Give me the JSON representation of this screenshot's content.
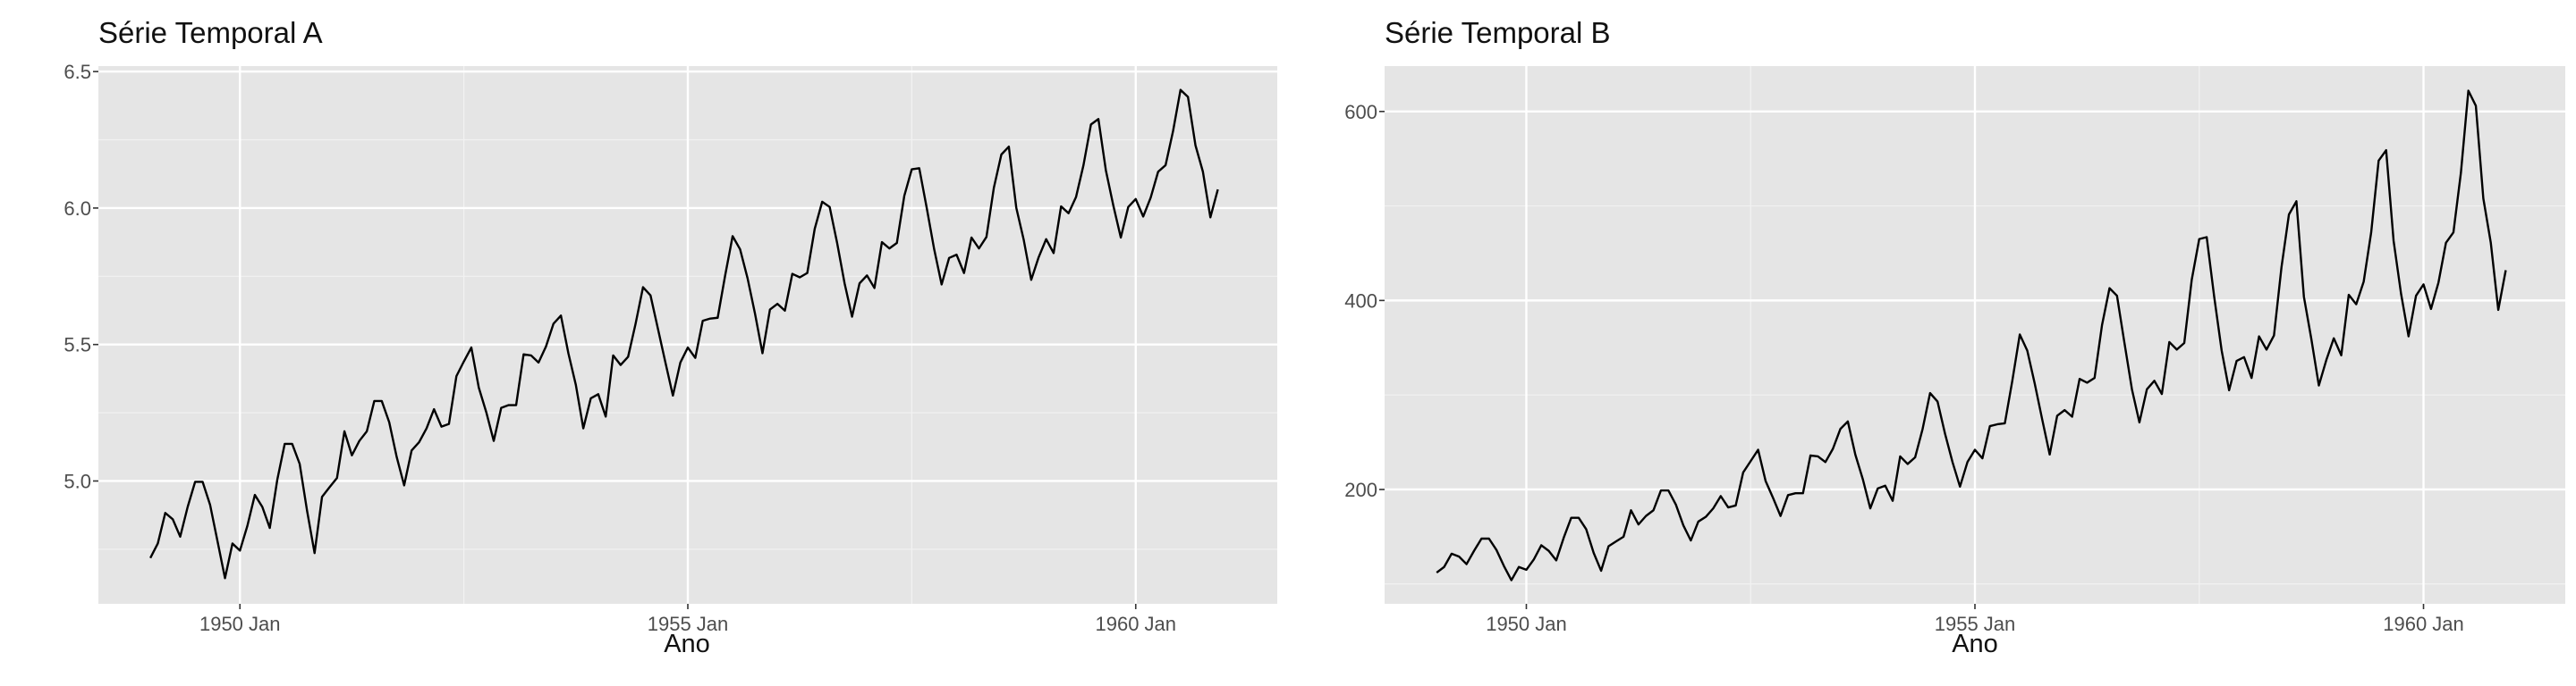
{
  "chart_data": [
    {
      "type": "line",
      "title": "Série Temporal A",
      "xlabel": "Ano",
      "ylabel": "",
      "x_tick_labels": [
        "1950 Jan",
        "1955 Jan",
        "1960 Jan"
      ],
      "y_tick_labels": [
        "5.0",
        "5.5",
        "6.0",
        "6.5"
      ],
      "y_ticks": [
        5.0,
        5.5,
        6.0,
        6.5
      ],
      "x_ticks": [
        1950,
        1955,
        1960
      ],
      "xlim": [
        1948.42,
        1961.58
      ],
      "ylim": [
        4.55,
        6.52
      ],
      "grid": true,
      "x_start": 1949,
      "x_step_months": 1,
      "series": [
        {
          "values": [
            4.718,
            4.771,
            4.883,
            4.86,
            4.796,
            4.905,
            4.997,
            4.997,
            4.913,
            4.779,
            4.644,
            4.771,
            4.745,
            4.836,
            4.949,
            4.905,
            4.828,
            5.004,
            5.136,
            5.136,
            5.063,
            4.89,
            4.736,
            4.942,
            4.977,
            5.011,
            5.182,
            5.094,
            5.147,
            5.182,
            5.293,
            5.293,
            5.215,
            5.088,
            4.984,
            5.112,
            5.142,
            5.193,
            5.263,
            5.199,
            5.209,
            5.384,
            5.438,
            5.489,
            5.342,
            5.252,
            5.147,
            5.268,
            5.278,
            5.278,
            5.464,
            5.46,
            5.434,
            5.493,
            5.576,
            5.606,
            5.468,
            5.352,
            5.193,
            5.303,
            5.318,
            5.236,
            5.46,
            5.425,
            5.455,
            5.576,
            5.71,
            5.68,
            5.557,
            5.434,
            5.313,
            5.434,
            5.489,
            5.451,
            5.587,
            5.595,
            5.598,
            5.753,
            5.897,
            5.849,
            5.743,
            5.613,
            5.468,
            5.628,
            5.649,
            5.624,
            5.759,
            5.746,
            5.762,
            5.924,
            6.023,
            6.004,
            5.872,
            5.724,
            5.602,
            5.724,
            5.753,
            5.707,
            5.875,
            5.852,
            5.872,
            6.045,
            6.142,
            6.146,
            6.001,
            5.849,
            5.72,
            5.817,
            5.829,
            5.762,
            5.892,
            5.852,
            5.894,
            6.075,
            6.196,
            6.225,
            6.001,
            5.883,
            5.737,
            5.82,
            5.886,
            5.835,
            6.006,
            5.981,
            6.04,
            6.157,
            6.306,
            6.326,
            6.138,
            6.009,
            5.892,
            6.004,
            6.033,
            5.969,
            6.038,
            6.133,
            6.157,
            6.282,
            6.433,
            6.407,
            6.23,
            6.133,
            5.966,
            6.068
          ]
        }
      ]
    },
    {
      "type": "line",
      "title": "Série Temporal B",
      "xlabel": "Ano",
      "ylabel": "",
      "x_tick_labels": [
        "1950 Jan",
        "1955 Jan",
        "1960 Jan"
      ],
      "y_tick_labels": [
        "200",
        "400",
        "600"
      ],
      "y_ticks": [
        200,
        400,
        600
      ],
      "x_ticks": [
        1950,
        1955,
        1960
      ],
      "xlim": [
        1948.42,
        1961.58
      ],
      "ylim": [
        79,
        648
      ],
      "grid": true,
      "x_start": 1949,
      "x_step_months": 1,
      "series": [
        {
          "values": [
            112,
            118,
            132,
            129,
            121,
            135,
            148,
            148,
            136,
            119,
            104,
            118,
            115,
            126,
            141,
            135,
            125,
            149,
            170,
            170,
            158,
            133,
            114,
            140,
            145,
            150,
            178,
            163,
            172,
            178,
            199,
            199,
            184,
            162,
            146,
            166,
            171,
            180,
            193,
            181,
            183,
            218,
            230,
            242,
            209,
            191,
            172,
            194,
            196,
            196,
            236,
            235,
            229,
            243,
            264,
            272,
            237,
            211,
            180,
            201,
            204,
            188,
            235,
            227,
            234,
            264,
            302,
            293,
            259,
            229,
            203,
            229,
            242,
            233,
            267,
            269,
            270,
            315,
            364,
            347,
            312,
            274,
            237,
            278,
            284,
            277,
            317,
            313,
            318,
            374,
            413,
            405,
            355,
            306,
            271,
            306,
            315,
            301,
            356,
            348,
            355,
            422,
            465,
            467,
            404,
            347,
            305,
            336,
            340,
            318,
            362,
            348,
            363,
            435,
            491,
            505,
            404,
            359,
            310,
            337,
            360,
            342,
            406,
            396,
            420,
            472,
            548,
            559,
            463,
            407,
            362,
            405,
            417,
            391,
            419,
            461,
            472,
            535,
            622,
            606,
            508,
            461,
            390,
            432
          ]
        }
      ]
    }
  ]
}
